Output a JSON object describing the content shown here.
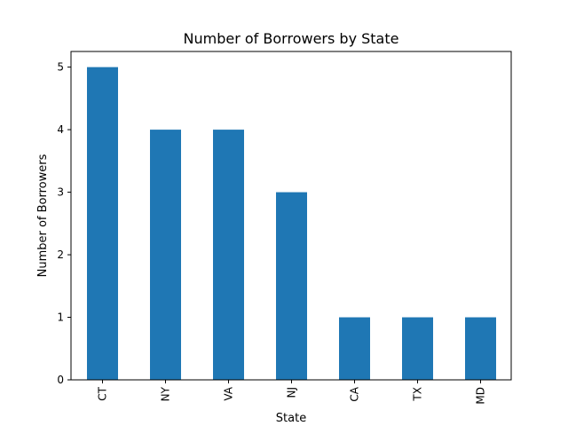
{
  "chart_data": {
    "type": "bar",
    "title": "Number of Borrowers by State",
    "xlabel": "State",
    "ylabel": "Number of Borrowers",
    "categories": [
      "CT",
      "NY",
      "VA",
      "NJ",
      "CA",
      "TX",
      "MD"
    ],
    "values": [
      5,
      4,
      4,
      3,
      1,
      1,
      1
    ],
    "ylim": [
      0,
      5.25
    ],
    "yticks": [
      0,
      1,
      2,
      3,
      4,
      5
    ],
    "grid": false,
    "bar_color": "#1f77b4"
  }
}
